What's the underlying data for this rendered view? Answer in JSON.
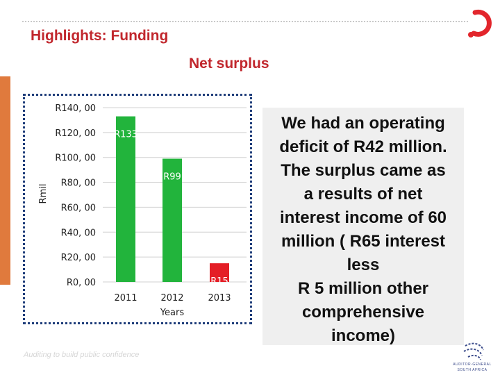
{
  "slide": {
    "title": "Highlights: Funding",
    "footer": "Auditing to build public confidence",
    "logo_text": [
      "AUDITOR-GENERAL",
      "SOUTH AFRICA"
    ]
  },
  "text_panel": {
    "text": "We had an operating\ndeficit of R42 million.\nThe surplus came as\na results of net\ninterest income of 60\nmillion ( R65 interest\nless\nR 5 million other\ncomprehensive\nincome)"
  },
  "colors": {
    "accent_red": "#c1272d",
    "bar_green": "#22b43c",
    "bar_red": "#e41e26",
    "frame_blue": "#1f3d7a"
  },
  "chart_data": {
    "type": "bar",
    "title": "Net surplus",
    "xlabel": "Years",
    "ylabel": "Rmil",
    "categories": [
      "2011",
      "2012",
      "2013"
    ],
    "values": [
      133,
      99,
      15
    ],
    "data_labels": [
      "R133",
      "R99",
      "R15"
    ],
    "bar_colors": [
      "#22b43c",
      "#22b43c",
      "#e41e26"
    ],
    "ylim": [
      0,
      140
    ],
    "yticks": [
      0,
      20,
      40,
      60,
      80,
      100,
      120,
      140
    ],
    "ytick_labels": [
      "R0, 00",
      "R20, 00",
      "R40, 00",
      "R60, 00",
      "R80, 00",
      "R100, 00",
      "R120, 00",
      "R140, 00"
    ],
    "grid": true,
    "legend": "none"
  }
}
